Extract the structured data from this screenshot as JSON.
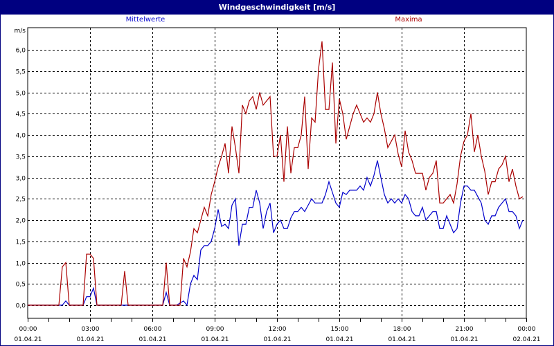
{
  "window": {
    "title": "Windgeschwindigkeit [m/s]"
  },
  "legend": {
    "mean": {
      "label": "Mittelwerte",
      "color": "#0000cc"
    },
    "max": {
      "label": "Maxima",
      "color": "#aa0000"
    }
  },
  "axes": {
    "y_unit": "m/s",
    "y_ticks": [
      "0,0",
      "0,5",
      "1,0",
      "1,5",
      "2,0",
      "2,5",
      "3,0",
      "3,5",
      "4,0",
      "4,5",
      "5,0",
      "5,5",
      "6,0"
    ],
    "x_ticks": [
      {
        "time": "00:00",
        "date": "01.04.21"
      },
      {
        "time": "03:00",
        "date": "01.04.21"
      },
      {
        "time": "06:00",
        "date": "01.04.21"
      },
      {
        "time": "09:00",
        "date": "01.04.21"
      },
      {
        "time": "12:00",
        "date": "01.04.21"
      },
      {
        "time": "15:00",
        "date": "01.04.21"
      },
      {
        "time": "18:00",
        "date": "01.04.21"
      },
      {
        "time": "21:00",
        "date": "01.04.21"
      },
      {
        "time": "00:00",
        "date": "02.04.21"
      }
    ]
  },
  "chart_data": {
    "type": "line",
    "title": "Windgeschwindigkeit [m/s]",
    "xlabel": "",
    "ylabel": "m/s",
    "ylim": [
      -0.3,
      6.5
    ],
    "xrange": [
      "01.04.21 00:00",
      "02.04.21 00:00"
    ],
    "x_interval_minutes": 10,
    "grid": true,
    "legend_position": "top",
    "series": [
      {
        "name": "Mittelwerte",
        "color": "#0000cc",
        "values": [
          0,
          0,
          0,
          0,
          0,
          0,
          0,
          0,
          0,
          0,
          0,
          0.1,
          0,
          0,
          0,
          0,
          0,
          0.2,
          0.2,
          0.4,
          0,
          0,
          0,
          0,
          0,
          0,
          0,
          0,
          0,
          0,
          0,
          0,
          0,
          0,
          0,
          0,
          0,
          0,
          0,
          0,
          0.3,
          0,
          0,
          0,
          0.05,
          0.1,
          0,
          0.5,
          0.7,
          0.6,
          1.3,
          1.4,
          1.4,
          1.5,
          1.8,
          2.25,
          1.85,
          1.9,
          1.8,
          2.35,
          2.5,
          1.4,
          1.9,
          1.9,
          2.3,
          2.3,
          2.7,
          2.4,
          1.8,
          2.2,
          2.4,
          1.7,
          1.9,
          2.0,
          1.8,
          1.8,
          2.05,
          2.2,
          2.2,
          2.3,
          2.2,
          2.35,
          2.5,
          2.4,
          2.4,
          2.4,
          2.6,
          2.9,
          2.65,
          2.4,
          2.3,
          2.65,
          2.6,
          2.7,
          2.7,
          2.7,
          2.8,
          2.7,
          3.0,
          2.8,
          3.05,
          3.4,
          3.0,
          2.6,
          2.4,
          2.5,
          2.4,
          2.5,
          2.4,
          2.6,
          2.5,
          2.2,
          2.1,
          2.1,
          2.3,
          2.0,
          2.1,
          2.2,
          2.2,
          1.8,
          1.8,
          2.1,
          1.9,
          1.7,
          1.8,
          2.4,
          2.8,
          2.8,
          2.7,
          2.7,
          2.55,
          2.4,
          2.0,
          1.9,
          2.1,
          2.1,
          2.3,
          2.4,
          2.5,
          2.2,
          2.2,
          2.1,
          1.8,
          2.0
        ]
      },
      {
        "name": "Maxima",
        "color": "#aa0000",
        "values": [
          0,
          0,
          0,
          0,
          0,
          0,
          0,
          0,
          0,
          0,
          0.9,
          1.0,
          0,
          0,
          0,
          0,
          0,
          1.2,
          1.2,
          1.1,
          0,
          0,
          0,
          0,
          0,
          0,
          0,
          0,
          0.8,
          0,
          0,
          0,
          0,
          0,
          0,
          0,
          0,
          0,
          0,
          0,
          1.0,
          0,
          0,
          0,
          0,
          1.1,
          0.9,
          1.25,
          1.8,
          1.7,
          2.0,
          2.3,
          2.1,
          2.6,
          2.9,
          3.25,
          3.5,
          3.8,
          3.1,
          4.2,
          3.7,
          3.1,
          4.7,
          4.5,
          4.8,
          4.9,
          4.6,
          5.0,
          4.7,
          4.8,
          4.9,
          3.5,
          3.5,
          4.0,
          2.9,
          4.2,
          3.1,
          3.7,
          3.7,
          4.0,
          4.9,
          3.2,
          4.4,
          4.3,
          5.55,
          6.2,
          4.6,
          4.6,
          5.7,
          3.8,
          4.85,
          4.5,
          3.9,
          4.2,
          4.5,
          4.7,
          4.5,
          4.3,
          4.4,
          4.3,
          4.5,
          5.0,
          4.5,
          4.15,
          3.7,
          3.85,
          4.0,
          3.55,
          3.25,
          4.1,
          3.6,
          3.4,
          3.1,
          3.1,
          3.1,
          2.7,
          3.0,
          3.1,
          3.4,
          2.4,
          2.4,
          2.5,
          2.6,
          2.4,
          2.85,
          3.5,
          3.85,
          4.0,
          4.5,
          3.6,
          4.0,
          3.5,
          3.15,
          2.6,
          2.9,
          2.9,
          3.2,
          3.3,
          3.5,
          2.9,
          3.2,
          2.8,
          2.5,
          2.55
        ]
      }
    ]
  }
}
